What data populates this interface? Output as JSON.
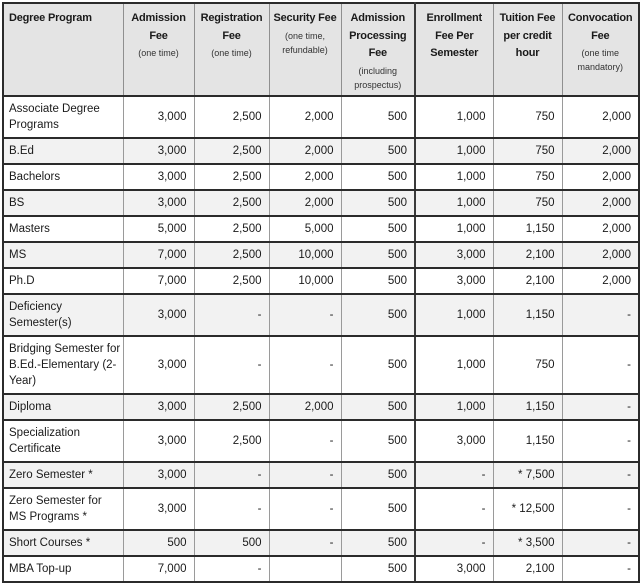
{
  "colors": {
    "header_bg": "#e4e4e4",
    "stripe_bg": "#f2f2f2",
    "row_bg": "#ffffff",
    "rule_dark": "#2b2b2b",
    "rule_light": "#9a9a9a",
    "text": "#1a1a1a"
  },
  "table": {
    "columns": [
      {
        "title": "Degree Program",
        "sub": ""
      },
      {
        "title": "Admission Fee",
        "sub": "(one time)"
      },
      {
        "title": "Registration Fee",
        "sub": "(one time)"
      },
      {
        "title": "Security Fee",
        "sub": "(one time, refundable)"
      },
      {
        "title": "Admission Processing Fee",
        "sub": "(including prospectus)"
      },
      {
        "title": "Enrollment Fee Per Semester",
        "sub": ""
      },
      {
        "title": "Tuition Fee per credit hour",
        "sub": ""
      },
      {
        "title": "Convocation Fee",
        "sub": "(one time mandatory)"
      }
    ],
    "rows": [
      {
        "program": "Associate Degree Programs",
        "values": [
          "3,000",
          "2,500",
          "2,000",
          "500",
          "1,000",
          "750",
          "2,000"
        ]
      },
      {
        "program": "B.Ed",
        "values": [
          "3,000",
          "2,500",
          "2,000",
          "500",
          "1,000",
          "750",
          "2,000"
        ]
      },
      {
        "program": "Bachelors",
        "values": [
          "3,000",
          "2,500",
          "2,000",
          "500",
          "1,000",
          "750",
          "2,000"
        ]
      },
      {
        "program": "BS",
        "values": [
          "3,000",
          "2,500",
          "2,000",
          "500",
          "1,000",
          "750",
          "2,000"
        ]
      },
      {
        "program": "Masters",
        "values": [
          "5,000",
          "2,500",
          "5,000",
          "500",
          "1,000",
          "1,150",
          "2,000"
        ]
      },
      {
        "program": "MS",
        "values": [
          "7,000",
          "2,500",
          "10,000",
          "500",
          "3,000",
          "2,100",
          "2,000"
        ]
      },
      {
        "program": "Ph.D",
        "values": [
          "7,000",
          "2,500",
          "10,000",
          "500",
          "3,000",
          "2,100",
          "2,000"
        ]
      },
      {
        "program": "Deficiency Semester(s)",
        "values": [
          "3,000",
          "-",
          "-",
          "500",
          "1,000",
          "1,150",
          "-"
        ]
      },
      {
        "program": "Bridging Semester for B.Ed.-Elementary (2-Year)",
        "values": [
          "3,000",
          "-",
          "-",
          "500",
          "1,000",
          "750",
          "-"
        ]
      },
      {
        "program": "Diploma",
        "values": [
          "3,000",
          "2,500",
          "2,000",
          "500",
          "1,000",
          "1,150",
          "-"
        ]
      },
      {
        "program": "Specialization Certificate",
        "values": [
          "3,000",
          "2,500",
          "-",
          "500",
          "3,000",
          "1,150",
          "-"
        ]
      },
      {
        "program": "Zero Semester *",
        "values": [
          "3,000",
          "-",
          "-",
          "500",
          "-",
          "* 7,500",
          "-"
        ]
      },
      {
        "program": "Zero Semester for MS Programs *",
        "values": [
          "3,000",
          "-",
          "-",
          "500",
          "-",
          "* 12,500",
          "-"
        ]
      },
      {
        "program": "Short Courses *",
        "values": [
          "500",
          "500",
          "-",
          "500",
          "-",
          "* 3,500",
          "-"
        ]
      },
      {
        "program": "MBA Top-up",
        "values": [
          "7,000",
          "-",
          "",
          "500",
          "3,000",
          "2,100",
          "-"
        ]
      }
    ]
  }
}
